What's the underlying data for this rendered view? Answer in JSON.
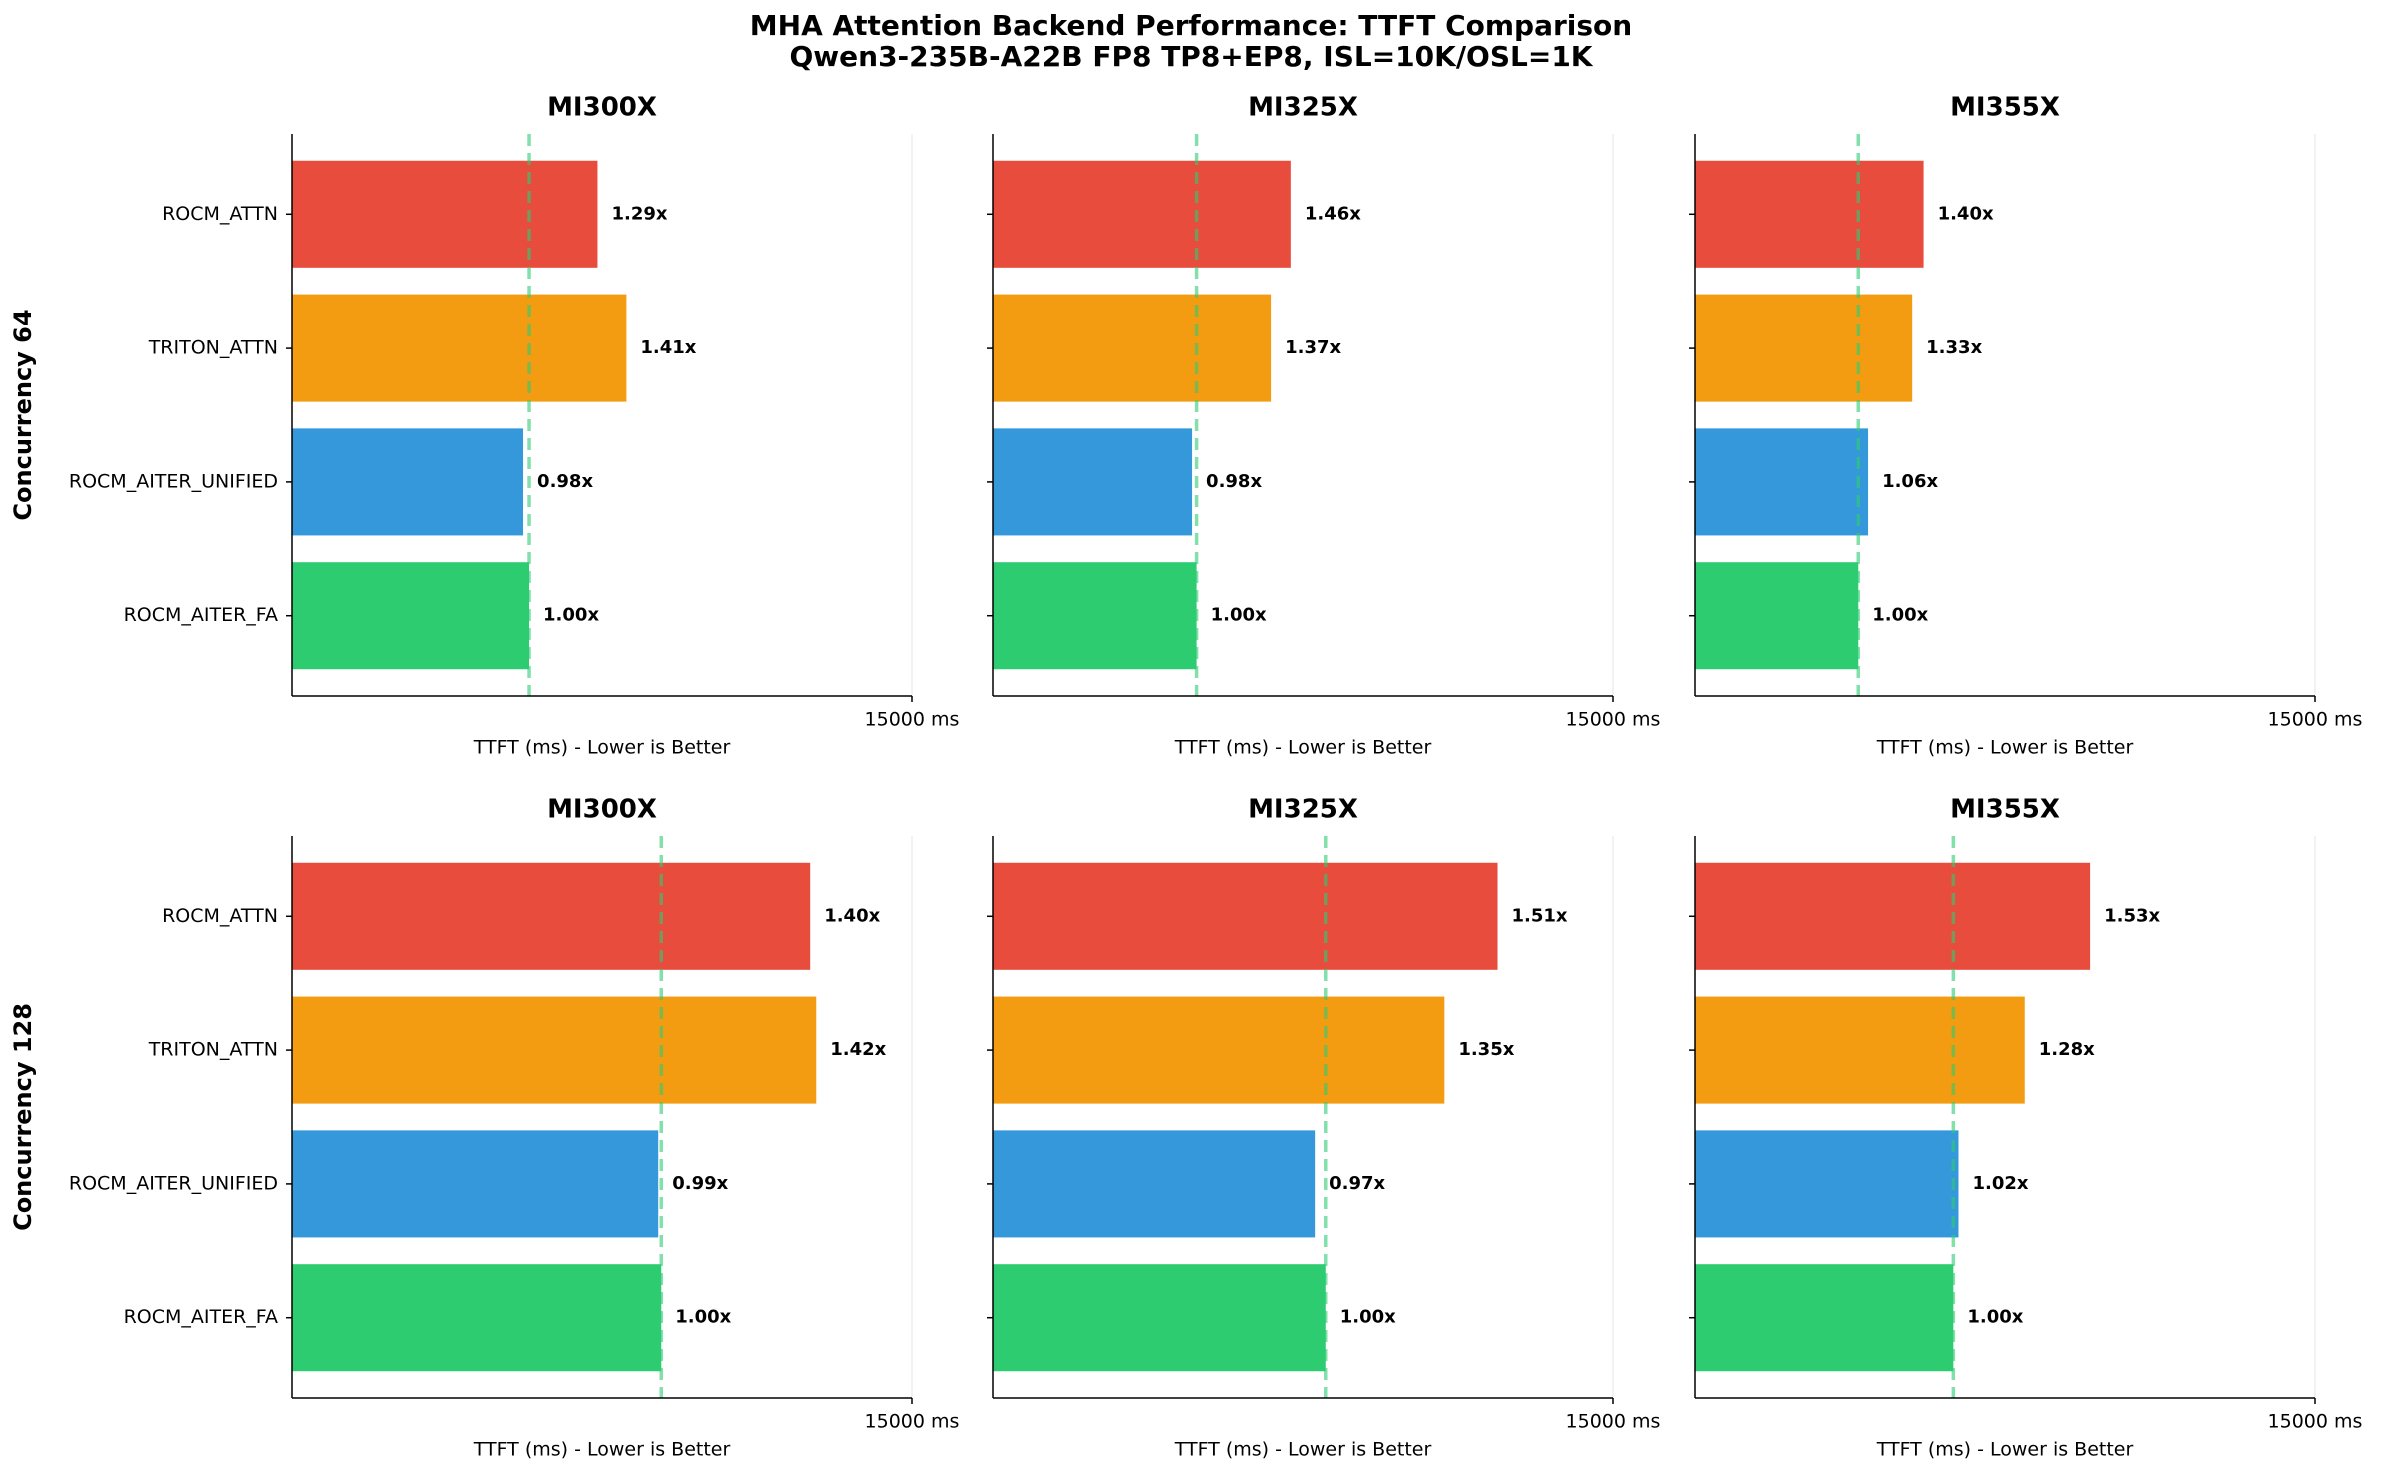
{
  "title": "MHA Attention Backend Performance: TTFT Comparison",
  "subtitle": "Qwen3-235B-A22B FP8 TP8+EP8, ISL=10K/OSL=1K",
  "chart_data": [
    {
      "type": "barh",
      "title": "MI300X",
      "ylabel": "Concurrency 64",
      "xlabel": "TTFT (ms) - Lower is Better",
      "categories": [
        "ROCM_ATTN",
        "TRITON_ATTN",
        "ROCM_AITER_UNIFIED",
        "ROCM_AITER_FA"
      ],
      "values": [
        7390,
        8090,
        5590,
        5735
      ],
      "ratio_labels": [
        "1.29x",
        "1.41x",
        "0.98x",
        "1.00x"
      ],
      "colors": [
        "#e74c3c",
        "#f39c12",
        "#3498db",
        "#2ecc71"
      ],
      "xlim": [
        0,
        15000
      ],
      "xticks": [
        {
          "value": 15000,
          "label": "15000 ms"
        }
      ]
    },
    {
      "type": "barh",
      "title": "MI325X",
      "xlabel": "TTFT (ms) - Lower is Better",
      "values": [
        7206,
        6728,
        4816,
        4926
      ],
      "ratio_labels": [
        "1.46x",
        "1.37x",
        "0.98x",
        "1.00x"
      ],
      "colors": [
        "#e74c3c",
        "#f39c12",
        "#3498db",
        "#2ecc71"
      ],
      "xlim": [
        0,
        15000
      ],
      "xticks": [
        {
          "value": 15000,
          "label": "15000 ms"
        }
      ]
    },
    {
      "type": "barh",
      "title": "MI355X",
      "xlabel": "TTFT (ms) - Lower is Better",
      "values": [
        5530,
        5254,
        4187,
        3950
      ],
      "ratio_labels": [
        "1.40x",
        "1.33x",
        "1.06x",
        "1.00x"
      ],
      "colors": [
        "#e74c3c",
        "#f39c12",
        "#3498db",
        "#2ecc71"
      ],
      "xlim": [
        0,
        15000
      ],
      "xticks": [
        {
          "value": 15000,
          "label": "15000 ms"
        }
      ]
    },
    {
      "type": "barh",
      "title": "MI300X",
      "ylabel": "Concurrency 128",
      "xlabel": "TTFT (ms) - Lower is Better",
      "categories": [
        "ROCM_ATTN",
        "TRITON_ATTN",
        "ROCM_AITER_UNIFIED",
        "ROCM_AITER_FA"
      ],
      "values": [
        12537,
        12684,
        8860,
        8934
      ],
      "ratio_labels": [
        "1.40x",
        "1.42x",
        "0.99x",
        "1.00x"
      ],
      "colors": [
        "#e74c3c",
        "#f39c12",
        "#3498db",
        "#2ecc71"
      ],
      "xlim": [
        0,
        15000
      ],
      "xticks": [
        {
          "value": 15000,
          "label": "15000 ms"
        }
      ]
    },
    {
      "type": "barh",
      "title": "MI325X",
      "xlabel": "TTFT (ms) - Lower is Better",
      "values": [
        12206,
        10919,
        7794,
        8051
      ],
      "ratio_labels": [
        "1.51x",
        "1.35x",
        "0.97x",
        "1.00x"
      ],
      "colors": [
        "#e74c3c",
        "#f39c12",
        "#3498db",
        "#2ecc71"
      ],
      "xlim": [
        0,
        15000
      ],
      "xticks": [
        {
          "value": 15000,
          "label": "15000 ms"
        }
      ]
    },
    {
      "type": "barh",
      "title": "MI355X",
      "xlabel": "TTFT (ms) - Lower is Better",
      "values": [
        9559,
        7978,
        6375,
        6250
      ],
      "ratio_labels": [
        "1.53x",
        "1.28x",
        "1.02x",
        "1.00x"
      ],
      "colors": [
        "#e74c3c",
        "#f39c12",
        "#3498db",
        "#2ecc71"
      ],
      "xlim": [
        0,
        15000
      ],
      "xticks": [
        {
          "value": 15000,
          "label": "15000 ms"
        }
      ]
    }
  ]
}
